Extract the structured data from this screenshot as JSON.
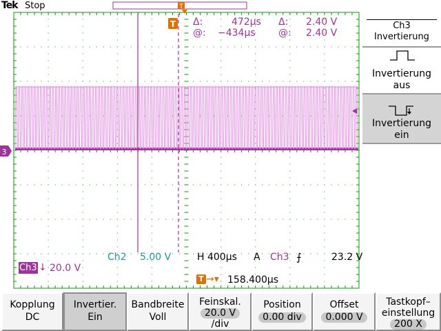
{
  "header": {
    "brand": "Tek",
    "state": "Stop"
  },
  "cursor_readout": {
    "delta_symbol": "Δ:",
    "at_symbol": "@:",
    "time_delta": "472µs",
    "time_at": "−434µs",
    "volt_delta": "2.40 V",
    "volt_at": "2.40 V"
  },
  "side_menu": {
    "title_line1": "Ch3",
    "title_line2": "Invertierung",
    "options": [
      {
        "label_line1": "Invertierung",
        "label_line2": "aus",
        "selected": false
      },
      {
        "label_line1": "Invertierung",
        "label_line2": "ein",
        "selected": true
      }
    ]
  },
  "ground_marker": "3",
  "status": {
    "ch3_badge": "Ch3",
    "ch3_scale": "20.0 V",
    "ch2_label": "Ch2",
    "ch2_scale": "5.00 V",
    "horizontal": "H 400µs",
    "trigger_mode": "A",
    "trigger_source": "Ch3",
    "trigger_level": "23.2 V",
    "trigger_position": "158.400µs"
  },
  "bottom_menu": [
    {
      "line1": "Kopplung",
      "line2": "DC",
      "pressed": false
    },
    {
      "line1": "Invertier.",
      "line2": "Ein",
      "pressed": true
    },
    {
      "line1": "Bandbreite",
      "line2": "Voll",
      "pressed": false
    },
    {
      "line1": "Feinskal.",
      "line2": "20.0 V",
      "line3": "/div",
      "pressed": false
    },
    {
      "line1": "Position",
      "line2": "0.00 div",
      "pressed": false
    },
    {
      "line1": "Offset",
      "line2": "0.000 V",
      "pressed": false
    },
    {
      "line1": "Tastkopf–",
      "line2": "einstellung",
      "line3": "200 X",
      "pressed": false
    }
  ],
  "colors": {
    "grid": "#00a000",
    "ch3": "#a0329b",
    "ch3_trace": "#e890e8",
    "ch2": "#1a9a9a",
    "trigger": "#e07000"
  }
}
